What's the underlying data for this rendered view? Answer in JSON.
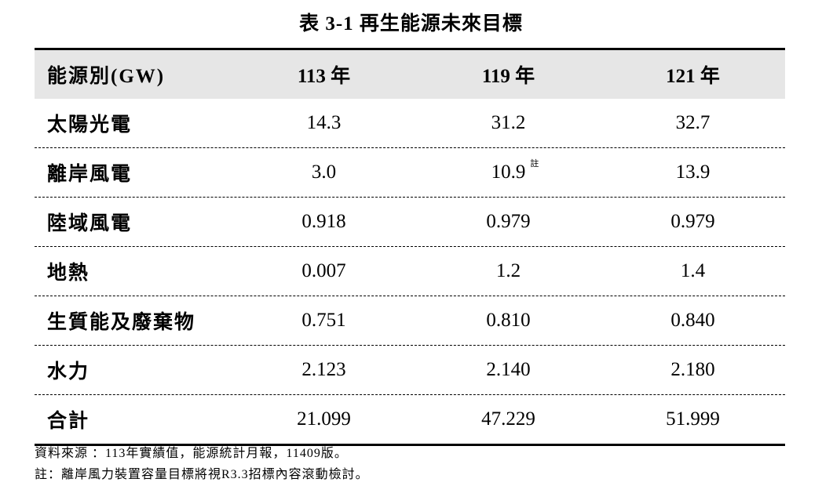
{
  "title": "表 3-1 再生能源未來目標",
  "table": {
    "header": [
      "能源別(GW)",
      "113 年",
      "119 年",
      "121 年"
    ],
    "rows": [
      [
        "太陽光電",
        "14.3",
        "31.2",
        "32.7"
      ],
      [
        "離岸風電",
        "3.0",
        "10.9",
        "13.9"
      ],
      [
        "陸域風電",
        "0.918",
        "0.979",
        "0.979"
      ],
      [
        "地熱",
        "0.007",
        "1.2",
        "1.4"
      ],
      [
        "生質能及廢棄物",
        "0.751",
        "0.810",
        "0.840"
      ],
      [
        "水力",
        "2.123",
        "2.140",
        "2.180"
      ],
      [
        "合計",
        "21.099",
        "47.229",
        "51.999"
      ]
    ],
    "note_marker": "註"
  },
  "footnotes": [
    "資料來源 ：113年實績值，能源統計月報，11409版。",
    "註：離岸風力裝置容量目標將視R3.3招標內容滾動檢討。"
  ]
}
